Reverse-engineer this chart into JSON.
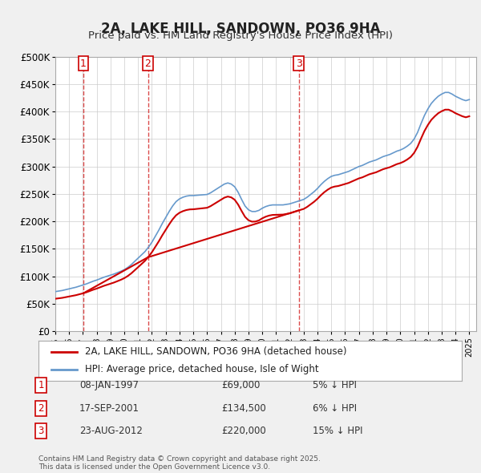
{
  "title": "2A, LAKE HILL, SANDOWN, PO36 9HA",
  "subtitle": "Price paid vs. HM Land Registry's House Price Index (HPI)",
  "ylabel": "",
  "ylim": [
    0,
    500000
  ],
  "yticks": [
    0,
    50000,
    100000,
    150000,
    200000,
    250000,
    300000,
    350000,
    400000,
    450000,
    500000
  ],
  "ytick_labels": [
    "£0",
    "£50K",
    "£100K",
    "£150K",
    "£200K",
    "£250K",
    "£300K",
    "£350K",
    "£400K",
    "£450K",
    "£500K"
  ],
  "xlim_start": 1995.0,
  "xlim_end": 2025.5,
  "bg_color": "#f0f0f0",
  "plot_bg_color": "#ffffff",
  "grid_color": "#cccccc",
  "hpi_color": "#6699cc",
  "price_color": "#cc0000",
  "sale_marker_color": "#cc0000",
  "sale_label_color": "#cc0000",
  "transaction_label_bg": "#ffffff",
  "transaction_label_border": "#cc0000",
  "legend_line1": "2A, LAKE HILL, SANDOWN, PO36 9HA (detached house)",
  "legend_line2": "HPI: Average price, detached house, Isle of Wight",
  "transactions": [
    {
      "num": 1,
      "date": "08-JAN-1997",
      "price": 69000,
      "year": 1997.03,
      "pct": "5%",
      "dir": "↓"
    },
    {
      "num": 2,
      "date": "17-SEP-2001",
      "price": 134500,
      "year": 2001.71,
      "pct": "6%",
      "dir": "↓"
    },
    {
      "num": 3,
      "date": "23-AUG-2012",
      "price": 220000,
      "year": 2012.64,
      "pct": "15%",
      "dir": "↓"
    }
  ],
  "footer": "Contains HM Land Registry data © Crown copyright and database right 2025.\nThis data is licensed under the Open Government Licence v3.0.",
  "hpi_data_years": [
    1995,
    1995.25,
    1995.5,
    1995.75,
    1996,
    1996.25,
    1996.5,
    1996.75,
    1997,
    1997.25,
    1997.5,
    1997.75,
    1998,
    1998.25,
    1998.5,
    1998.75,
    1999,
    1999.25,
    1999.5,
    1999.75,
    2000,
    2000.25,
    2000.5,
    2000.75,
    2001,
    2001.25,
    2001.5,
    2001.75,
    2002,
    2002.25,
    2002.5,
    2002.75,
    2003,
    2003.25,
    2003.5,
    2003.75,
    2004,
    2004.25,
    2004.5,
    2004.75,
    2005,
    2005.25,
    2005.5,
    2005.75,
    2006,
    2006.25,
    2006.5,
    2006.75,
    2007,
    2007.25,
    2007.5,
    2007.75,
    2008,
    2008.25,
    2008.5,
    2008.75,
    2009,
    2009.25,
    2009.5,
    2009.75,
    2010,
    2010.25,
    2010.5,
    2010.75,
    2011,
    2011.25,
    2011.5,
    2011.75,
    2012,
    2012.25,
    2012.5,
    2012.75,
    2013,
    2013.25,
    2013.5,
    2013.75,
    2014,
    2014.25,
    2014.5,
    2014.75,
    2015,
    2015.25,
    2015.5,
    2015.75,
    2016,
    2016.25,
    2016.5,
    2016.75,
    2017,
    2017.25,
    2017.5,
    2017.75,
    2018,
    2018.25,
    2018.5,
    2018.75,
    2019,
    2019.25,
    2019.5,
    2019.75,
    2020,
    2020.25,
    2020.5,
    2020.75,
    2021,
    2021.25,
    2021.5,
    2021.75,
    2022,
    2022.25,
    2022.5,
    2022.75,
    2023,
    2023.25,
    2023.5,
    2023.75,
    2024,
    2024.25,
    2024.5,
    2024.75,
    2025
  ],
  "hpi_data_values": [
    72000,
    73000,
    74000,
    75500,
    77000,
    78500,
    80000,
    82000,
    84000,
    86000,
    88500,
    91000,
    93000,
    95500,
    98000,
    100000,
    102000,
    104000,
    106500,
    109000,
    112000,
    116000,
    121000,
    127000,
    133000,
    139000,
    145000,
    153000,
    162000,
    173000,
    184000,
    196000,
    207000,
    218000,
    228000,
    236000,
    241000,
    244000,
    246000,
    247000,
    247000,
    247500,
    248000,
    248500,
    249000,
    252000,
    256000,
    260000,
    264000,
    268000,
    270000,
    268000,
    263000,
    253000,
    240000,
    228000,
    221000,
    218000,
    218000,
    220000,
    224000,
    227000,
    229000,
    230000,
    230000,
    230000,
    230000,
    231000,
    232000,
    234000,
    236000,
    238000,
    240000,
    244000,
    249000,
    254000,
    260000,
    267000,
    273000,
    278000,
    282000,
    284000,
    285000,
    287000,
    289000,
    291000,
    294000,
    297000,
    300000,
    302000,
    305000,
    308000,
    310000,
    312000,
    315000,
    318000,
    320000,
    322000,
    325000,
    328000,
    330000,
    333000,
    337000,
    342000,
    350000,
    362000,
    378000,
    393000,
    405000,
    415000,
    422000,
    428000,
    432000,
    435000,
    435000,
    432000,
    428000,
    425000,
    422000,
    420000,
    422000
  ]
}
